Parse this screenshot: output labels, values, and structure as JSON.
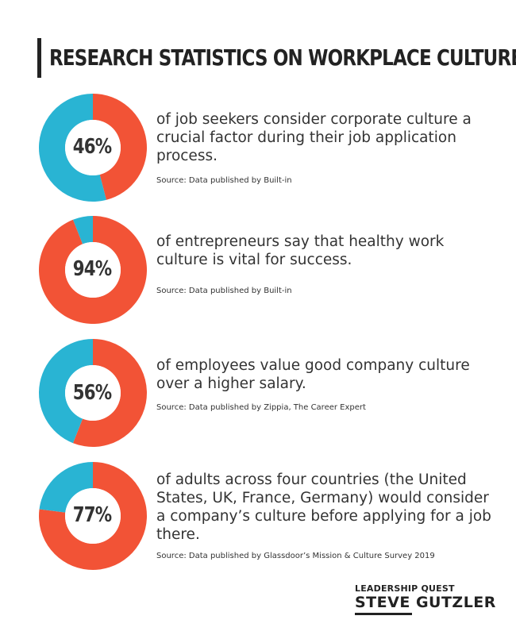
{
  "title": "RESEARCH STATISTICS ON WORKPLACE CULTURE",
  "colors": {
    "primary": "#f25336",
    "secondary": "#29b4d3",
    "text": "#333333"
  },
  "stats": [
    {
      "percent_label": "46%",
      "description": "of job seekers consider corporate culture a crucial factor during their job application process.",
      "source": "Source: Data published by Built-in"
    },
    {
      "percent_label": "94%",
      "description": "of entrepreneurs say that healthy work culture is vital for success.",
      "source": "Source: Data published by Built-in"
    },
    {
      "percent_label": "56%",
      "description": "of employees value good company culture over a higher salary.",
      "source": "Source: Data published by Zippia, The Career Expert"
    },
    {
      "percent_label": "77%",
      "description": "of adults across four countries (the United States, UK, France, Germany) would consider a company’s culture before applying for a job there.",
      "source": "Source: Data published by Glassdoor’s Mission & Culture Survey 2019"
    }
  ],
  "chart_data": [
    {
      "type": "pie",
      "values": [
        46,
        54
      ],
      "colors": [
        "#f25336",
        "#29b4d3"
      ]
    },
    {
      "type": "pie",
      "values": [
        94,
        6
      ],
      "colors": [
        "#f25336",
        "#29b4d3"
      ]
    },
    {
      "type": "pie",
      "values": [
        56,
        44
      ],
      "colors": [
        "#f25336",
        "#29b4d3"
      ]
    },
    {
      "type": "pie",
      "values": [
        77,
        23
      ],
      "colors": [
        "#f25336",
        "#29b4d3"
      ]
    }
  ],
  "logo": {
    "top_line": "LEADERSHIP QUEST",
    "first_name": "STEVE",
    "last_name": "GUTZLER"
  }
}
